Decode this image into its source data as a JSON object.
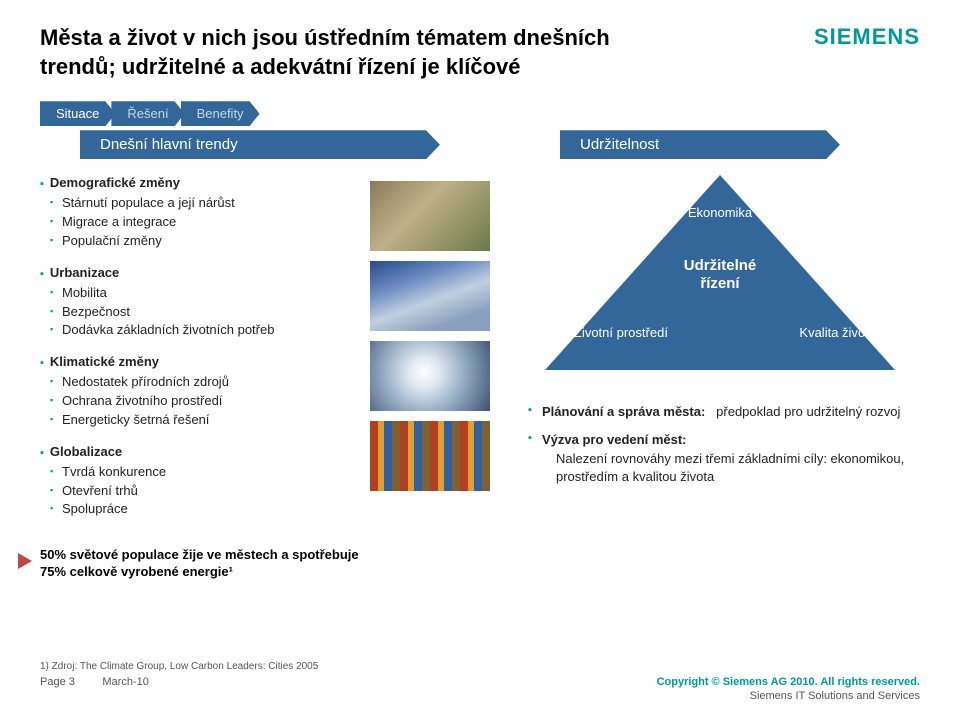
{
  "colors": {
    "brand_teal": "#009999",
    "bar_blue": "#336699",
    "accent_red": "#b84a4a",
    "text": "#222222",
    "muted": "#555555",
    "tab_inactive_text": "#c5d6e6",
    "background": "#ffffff"
  },
  "typography": {
    "title_fontsize": 22,
    "body_fontsize": 13,
    "footnote_fontsize": 10,
    "footer_fontsize": 11
  },
  "header": {
    "title": "Města a život v nich jsou ústředním tématem dnešních trendů; udržitelné a adekvátní řízení je klíčové",
    "logo": "SIEMENS"
  },
  "tabs": [
    {
      "label": "Situace",
      "active": true
    },
    {
      "label": "Řešení",
      "active": false
    },
    {
      "label": "Benefity",
      "active": false
    }
  ],
  "subtitles": {
    "left": "Dnešní hlavní trendy",
    "right": "Udržitelnost"
  },
  "trend_groups": [
    {
      "title": "Demografické změny",
      "items": [
        "Stárnutí populace a její nárůst",
        "Migrace a integrace",
        "Populační změny"
      ]
    },
    {
      "title": "Urbanizace",
      "items": [
        "Mobilita",
        "Bezpečnost",
        "Dodávka základních životních potřeb"
      ]
    },
    {
      "title": "Klimatické změny",
      "items": [
        "Nedostatek přírodních zdrojů",
        "Ochrana životního prostředí",
        "Energeticky šetrná řešení"
      ]
    },
    {
      "title": "Globalizace",
      "items": [
        "Tvrdá konkurence",
        "Otevření trhů",
        "Spolupráce"
      ]
    }
  ],
  "triangle": {
    "type": "triangle-diagram",
    "fill_color": "#336699",
    "label_color": "#ffffff",
    "top": "Ekonomika",
    "center_line1": "Udržitelné",
    "center_line2": "řízení",
    "left": "Životní prostředí",
    "right": "Kvalita života"
  },
  "right_bullets": {
    "item1_bold": "Plánování a správa města:",
    "item1_rest": "předpoklad pro udržitelný rozvoj",
    "item2_bold": "Výzva pro vedení měst:",
    "item2_sub": "Nalezení rovnováhy mezi třemi základními cíly: ekonomikou, prostředím a kvalitou života"
  },
  "callout": {
    "line1": "50% světové populace žije ve městech a spotřebuje",
    "line2": "75%  celkově vyrobené energie¹"
  },
  "footnote": "1) Zdroj: The Climate Group, Low Carbon Leaders: Cities 2005",
  "footer": {
    "page_label": "Page 3",
    "date": "March-10",
    "copyright": "Copyright © Siemens AG 2010. All rights reserved.",
    "division": "Siemens IT Solutions and Services"
  }
}
